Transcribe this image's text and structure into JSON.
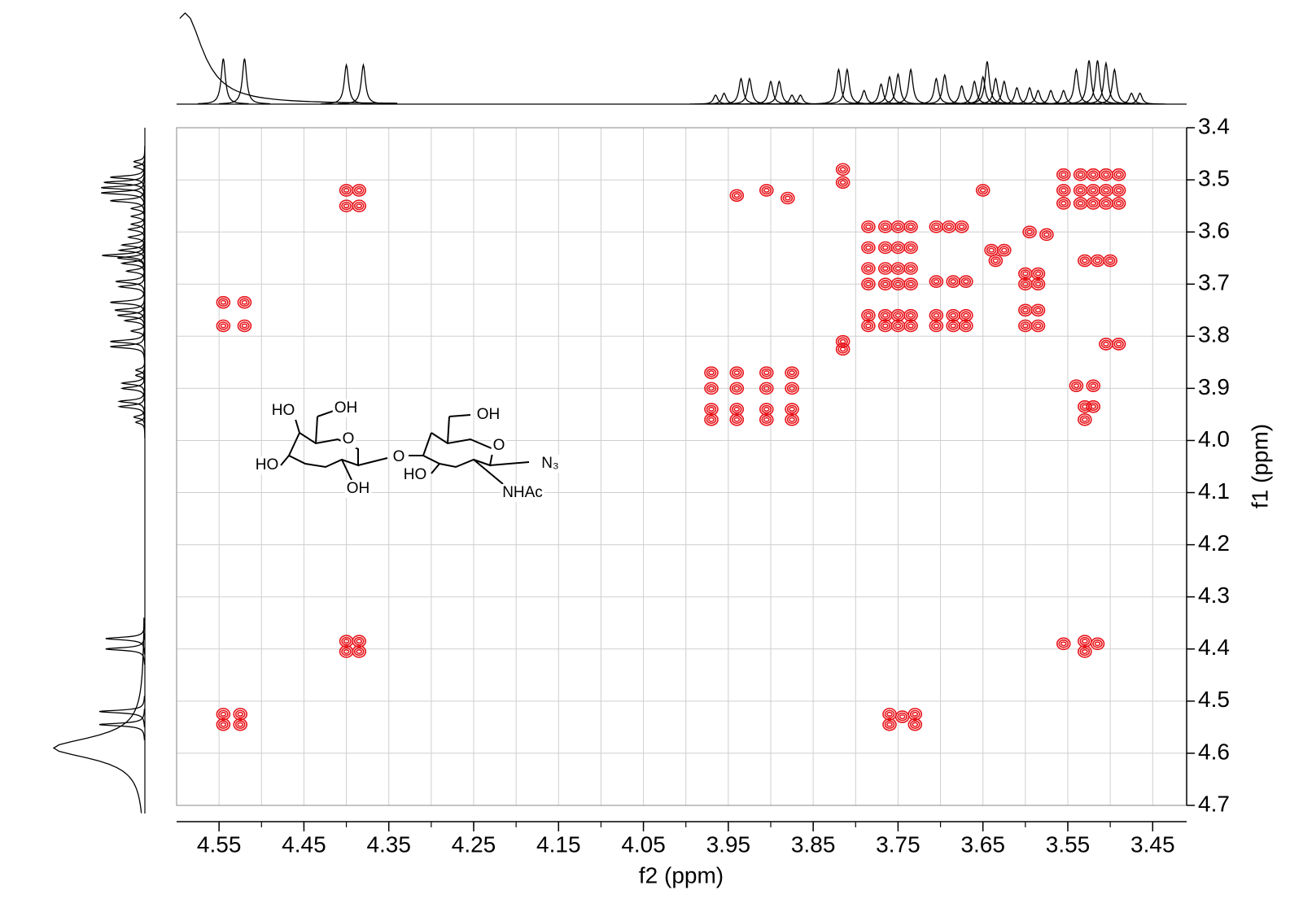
{
  "chart_data": {
    "type": "scatter",
    "xlabel": "f2 (ppm)",
    "ylabel": "f1 (ppm)",
    "xlim": [
      4.6,
      3.41
    ],
    "ylim": [
      3.4,
      4.7
    ],
    "xticks": [
      4.55,
      4.45,
      4.35,
      4.25,
      4.15,
      4.05,
      3.95,
      3.85,
      3.75,
      3.65,
      3.55,
      3.45
    ],
    "xgrid": [
      4.55,
      4.5,
      4.45,
      4.4,
      4.35,
      4.3,
      4.25,
      4.2,
      4.15,
      4.1,
      4.05,
      4.0,
      3.95,
      3.9,
      3.85,
      3.8,
      3.75,
      3.7,
      3.65,
      3.6,
      3.55,
      3.5,
      3.45
    ],
    "yticks": [
      3.4,
      3.5,
      3.6,
      3.7,
      3.8,
      3.9,
      {
        "value": 4.0,
        "label": "4.0"
      },
      4.1,
      4.2,
      4.3,
      4.4,
      4.5,
      4.6,
      4.7
    ],
    "grid": true,
    "color": "#e8141a",
    "x": [
      4.4,
      4.385,
      4.4,
      4.385,
      4.545,
      4.52,
      4.545,
      4.52,
      4.4,
      4.385,
      4.4,
      4.385,
      4.545,
      4.525,
      4.545,
      4.525,
      3.815,
      3.815,
      3.815,
      3.815,
      3.76,
      3.76,
      3.745,
      3.73,
      3.73,
      3.555,
      3.53,
      3.53,
      3.515,
      3.505,
      3.49,
      3.97,
      3.94,
      3.905,
      3.875,
      3.97,
      3.94,
      3.905,
      3.875,
      3.97,
      3.94,
      3.905,
      3.875,
      3.97,
      3.94,
      3.905,
      3.875,
      3.54,
      3.52,
      3.53,
      3.52,
      3.53,
      3.555,
      3.535,
      3.52,
      3.505,
      3.49,
      3.555,
      3.535,
      3.52,
      3.505,
      3.49,
      3.555,
      3.535,
      3.52,
      3.505,
      3.49,
      3.785,
      3.765,
      3.75,
      3.735,
      3.785,
      3.765,
      3.75,
      3.735,
      3.785,
      3.765,
      3.75,
      3.735,
      3.785,
      3.765,
      3.75,
      3.735,
      3.785,
      3.765,
      3.75,
      3.735,
      3.785,
      3.765,
      3.75,
      3.735,
      3.705,
      3.69,
      3.675,
      3.64,
      3.625,
      3.635,
      3.705,
      3.685,
      3.67,
      3.705,
      3.685,
      3.67,
      3.705,
      3.685,
      3.67,
      3.6,
      3.585,
      3.6,
      3.585,
      3.6,
      3.585,
      3.6,
      3.585,
      3.595,
      3.575,
      3.94,
      3.905,
      3.88,
      3.53,
      3.515,
      3.5,
      3.65
    ],
    "y": [
      3.52,
      3.52,
      3.55,
      3.55,
      3.735,
      3.735,
      3.78,
      3.78,
      4.385,
      4.385,
      4.405,
      4.405,
      4.525,
      4.525,
      4.545,
      4.545,
      3.48,
      3.505,
      3.81,
      3.825,
      4.525,
      4.545,
      4.53,
      4.525,
      4.545,
      4.39,
      4.385,
      4.405,
      4.39,
      3.815,
      3.815,
      3.87,
      3.87,
      3.87,
      3.87,
      3.9,
      3.9,
      3.9,
      3.9,
      3.94,
      3.94,
      3.94,
      3.94,
      3.96,
      3.96,
      3.96,
      3.96,
      3.895,
      3.895,
      3.935,
      3.935,
      3.96,
      3.49,
      3.49,
      3.49,
      3.49,
      3.49,
      3.52,
      3.52,
      3.52,
      3.52,
      3.52,
      3.545,
      3.545,
      3.545,
      3.545,
      3.545,
      3.59,
      3.59,
      3.59,
      3.59,
      3.63,
      3.63,
      3.63,
      3.63,
      3.67,
      3.67,
      3.67,
      3.67,
      3.7,
      3.7,
      3.7,
      3.7,
      3.76,
      3.76,
      3.76,
      3.76,
      3.78,
      3.78,
      3.78,
      3.78,
      3.59,
      3.59,
      3.59,
      3.635,
      3.635,
      3.655,
      3.695,
      3.695,
      3.695,
      3.76,
      3.76,
      3.76,
      3.78,
      3.78,
      3.78,
      3.68,
      3.68,
      3.7,
      3.7,
      3.75,
      3.75,
      3.78,
      3.78,
      3.6,
      3.605,
      3.53,
      3.52,
      3.535,
      3.655,
      3.655,
      3.655,
      3.52
    ],
    "projection": {
      "ppm": [
        4.59,
        4.545,
        4.52,
        4.4,
        4.38,
        3.965,
        3.955,
        3.935,
        3.925,
        3.9,
        3.89,
        3.875,
        3.865,
        3.82,
        3.81,
        3.79,
        3.77,
        3.76,
        3.75,
        3.735,
        3.705,
        3.695,
        3.675,
        3.66,
        3.65,
        3.645,
        3.635,
        3.625,
        3.61,
        3.595,
        3.585,
        3.57,
        3.555,
        3.54,
        3.525,
        3.515,
        3.505,
        3.495,
        3.475,
        3.465
      ],
      "intensity": [
        1.0,
        0.5,
        0.5,
        0.43,
        0.43,
        0.1,
        0.12,
        0.28,
        0.28,
        0.25,
        0.25,
        0.1,
        0.1,
        0.38,
        0.38,
        0.15,
        0.22,
        0.3,
        0.33,
        0.38,
        0.28,
        0.32,
        0.2,
        0.25,
        0.3,
        0.47,
        0.28,
        0.25,
        0.18,
        0.18,
        0.15,
        0.15,
        0.15,
        0.38,
        0.48,
        0.48,
        0.45,
        0.38,
        0.12,
        0.12
      ],
      "linewidth": [
        0.025,
        0.003,
        0.003,
        0.003,
        0.003,
        0.003,
        0.003,
        0.003,
        0.003,
        0.003,
        0.003,
        0.003,
        0.003,
        0.003,
        0.003,
        0.003,
        0.003,
        0.003,
        0.003,
        0.003,
        0.003,
        0.003,
        0.003,
        0.003,
        0.003,
        0.003,
        0.003,
        0.003,
        0.003,
        0.003,
        0.003,
        0.003,
        0.003,
        0.003,
        0.003,
        0.003,
        0.003,
        0.003,
        0.003,
        0.003
      ]
    },
    "structure": {
      "labels": [
        "HO",
        "OH",
        "O",
        "HO",
        "OH",
        "O",
        "OH",
        "O",
        "N₃",
        "HO",
        "NHAc"
      ]
    }
  }
}
